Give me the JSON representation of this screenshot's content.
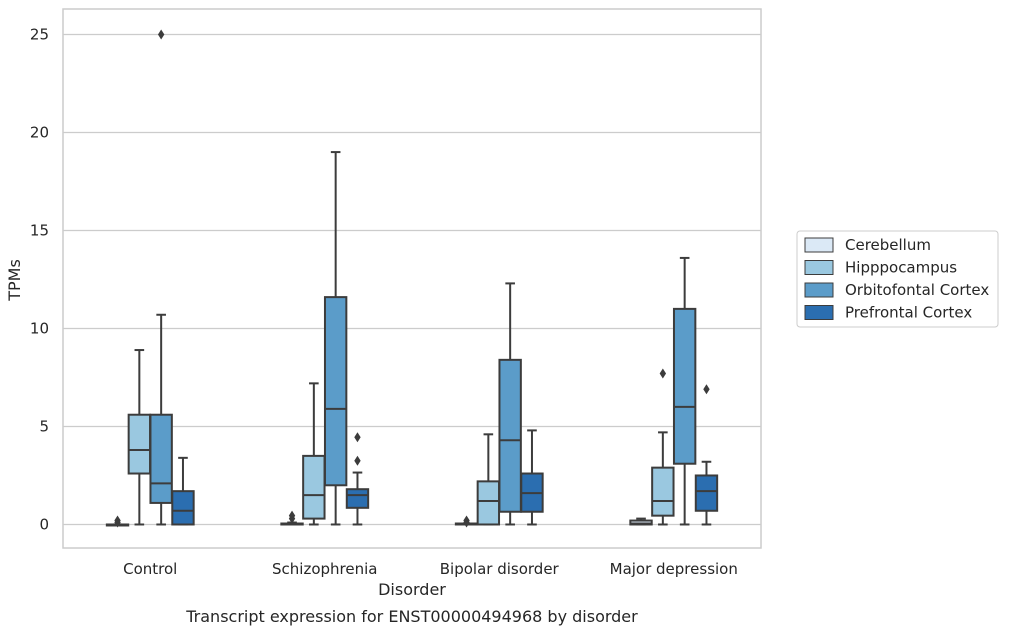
{
  "chart_data": {
    "type": "box",
    "title": "",
    "caption": "Transcript expression for ENST00000494968 by disorder",
    "xlabel": "Disorder",
    "ylabel": "TPMs",
    "ylim": [
      -1.2,
      26.3
    ],
    "yticks": [
      0,
      5,
      10,
      15,
      20,
      25
    ],
    "grid": "horizontal",
    "legend_position": "right",
    "categories": [
      "Control",
      "Schizophrenia",
      "Bipolar disorder",
      "Major depression"
    ],
    "series": [
      {
        "name": "Cerebellum",
        "color": "#dbe9f6",
        "boxes": [
          {
            "whisker_low": 0,
            "q1": 0,
            "median": 0,
            "q3": 0,
            "whisker_high": 0,
            "outliers": [
              0.1,
              0.2
            ]
          },
          {
            "whisker_low": 0,
            "q1": 0,
            "median": 0,
            "q3": 0.05,
            "whisker_high": 0.1,
            "outliers": [
              0.3,
              0.45
            ]
          },
          {
            "whisker_low": 0,
            "q1": 0,
            "median": 0,
            "q3": 0.05,
            "whisker_high": 0.05,
            "outliers": [
              0.1,
              0.2
            ]
          },
          {
            "whisker_low": 0,
            "q1": 0,
            "median": 0.05,
            "q3": 0.2,
            "whisker_high": 0.3,
            "outliers": []
          }
        ]
      },
      {
        "name": "Hipppocampus",
        "color": "#9ac8e0",
        "boxes": [
          {
            "whisker_low": 0,
            "q1": 2.6,
            "median": 3.8,
            "q3": 5.6,
            "whisker_high": 8.9,
            "outliers": []
          },
          {
            "whisker_low": 0,
            "q1": 0.3,
            "median": 1.5,
            "q3": 3.5,
            "whisker_high": 7.2,
            "outliers": []
          },
          {
            "whisker_low": 0,
            "q1": 0,
            "median": 1.2,
            "q3": 2.2,
            "whisker_high": 4.6,
            "outliers": []
          },
          {
            "whisker_low": 0,
            "q1": 0.45,
            "median": 1.2,
            "q3": 2.9,
            "whisker_high": 4.7,
            "outliers": [
              7.7
            ]
          }
        ]
      },
      {
        "name": "Orbitofontal Cortex",
        "color": "#5b9cc9",
        "boxes": [
          {
            "whisker_low": 0,
            "q1": 1.1,
            "median": 2.1,
            "q3": 5.6,
            "whisker_high": 10.7,
            "outliers": [
              25.0
            ]
          },
          {
            "whisker_low": 0,
            "q1": 2.0,
            "median": 5.9,
            "q3": 11.6,
            "whisker_high": 19.0,
            "outliers": []
          },
          {
            "whisker_low": 0,
            "q1": 0.65,
            "median": 4.3,
            "q3": 8.4,
            "whisker_high": 12.3,
            "outliers": []
          },
          {
            "whisker_low": 0,
            "q1": 3.1,
            "median": 6.0,
            "q3": 11.0,
            "whisker_high": 13.6,
            "outliers": []
          }
        ]
      },
      {
        "name": "Prefrontal Cortex",
        "color": "#2b6eb0",
        "boxes": [
          {
            "whisker_low": 0,
            "q1": 0,
            "median": 0.7,
            "q3": 1.7,
            "whisker_high": 3.4,
            "outliers": []
          },
          {
            "whisker_low": 0,
            "q1": 0.85,
            "median": 1.5,
            "q3": 1.8,
            "whisker_high": 2.65,
            "outliers": [
              3.25,
              4.45
            ]
          },
          {
            "whisker_low": 0,
            "q1": 0.65,
            "median": 1.6,
            "q3": 2.6,
            "whisker_high": 4.8,
            "outliers": []
          },
          {
            "whisker_low": 0,
            "q1": 0.7,
            "median": 1.7,
            "q3": 2.5,
            "whisker_high": 3.2,
            "outliers": [
              6.9
            ]
          }
        ]
      }
    ]
  }
}
